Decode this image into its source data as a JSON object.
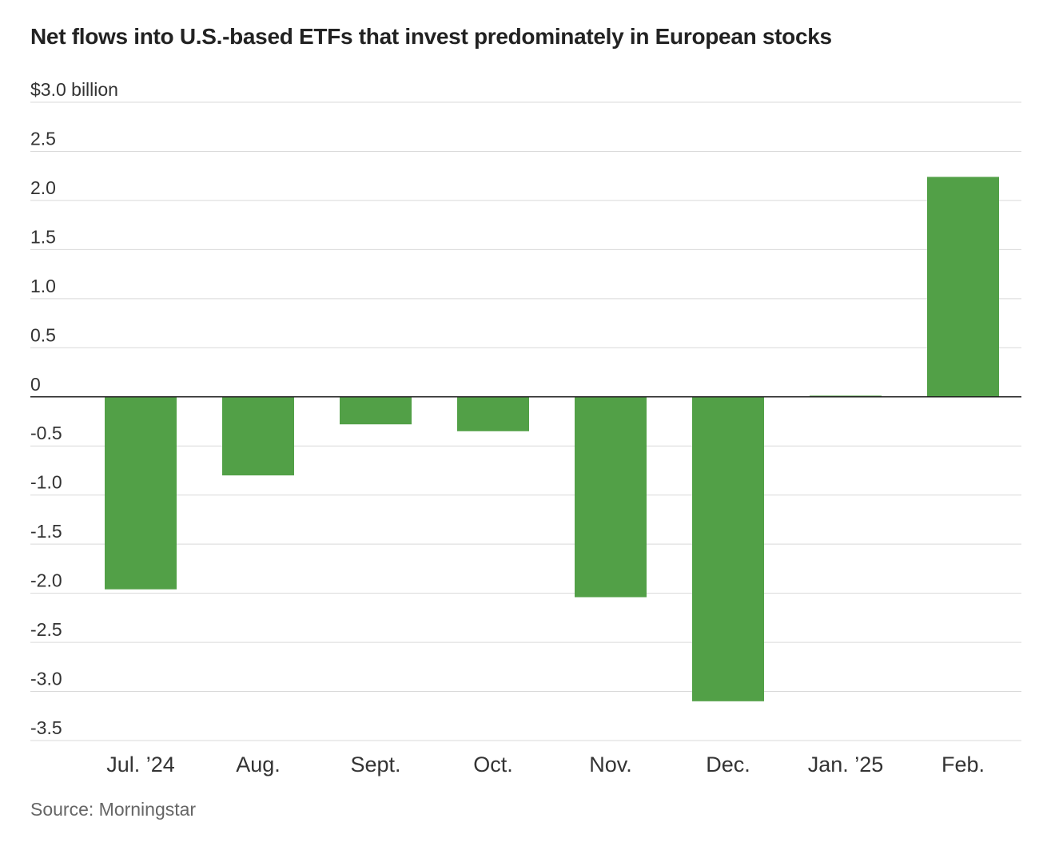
{
  "colors": {
    "bar": "#52a047",
    "grid": "#d9d9d9",
    "text": "#333333"
  },
  "chart_data": {
    "type": "bar",
    "title": "Net flows into U.S.-based ETFs that invest predominately in European stocks",
    "ylabel_unit": "billion",
    "ylim": [
      -3.5,
      3.0
    ],
    "yticks": [
      3.0,
      2.5,
      2.0,
      1.5,
      1.0,
      0.5,
      0,
      -0.5,
      -1.0,
      -1.5,
      -2.0,
      -2.5,
      -3.0,
      -3.5
    ],
    "ytick_labels": [
      "$3.0 billion",
      "2.5",
      "2.0",
      "1.5",
      "1.0",
      "0.5",
      "0",
      "-0.5",
      "-1.0",
      "-1.5",
      "-2.0",
      "-2.5",
      "-3.0",
      "-3.5"
    ],
    "categories": [
      "Jul. ’24",
      "Aug.",
      "Sept.",
      "Oct.",
      "Nov.",
      "Dec.",
      "Jan. ’25",
      "Feb."
    ],
    "values": [
      -1.96,
      -0.8,
      -0.28,
      -0.35,
      -2.04,
      -3.1,
      0.01,
      2.24
    ],
    "source": "Source: Morningstar"
  }
}
